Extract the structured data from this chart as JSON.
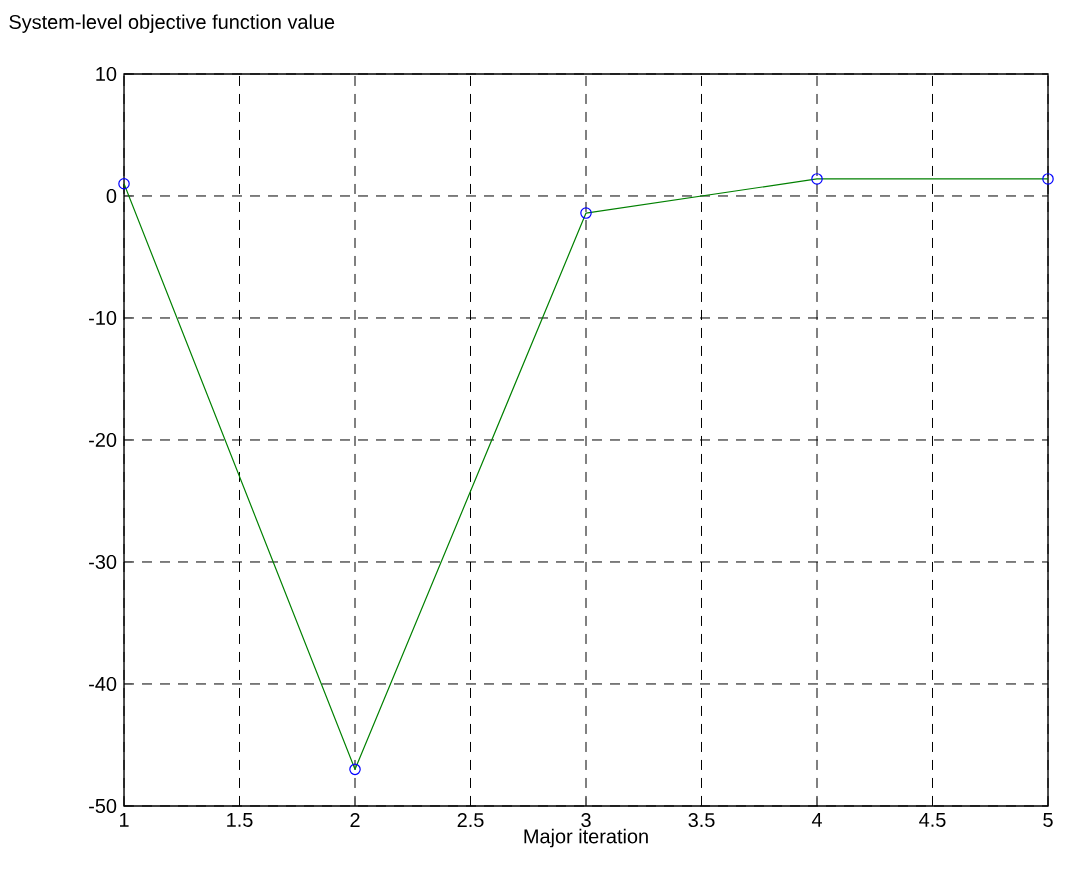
{
  "chart_data": {
    "type": "line",
    "title": "System-level objective function value",
    "xlabel": "Major iteration",
    "x": [
      1,
      2,
      3,
      4,
      5
    ],
    "series": [
      {
        "color": "#008000",
        "values": [
          1.0,
          -47.0,
          -1.4,
          1.4,
          1.4
        ]
      }
    ],
    "xlim": [
      1,
      5
    ],
    "xticks": [
      1,
      1.5,
      2,
      2.5,
      3,
      3.5,
      4,
      4.5,
      5
    ],
    "ylim": [
      -50,
      10
    ],
    "yticks": [
      -50,
      -40,
      -30,
      -20,
      -10,
      0,
      10
    ],
    "grid": true,
    "marker": "circle",
    "line_style": "solid"
  }
}
